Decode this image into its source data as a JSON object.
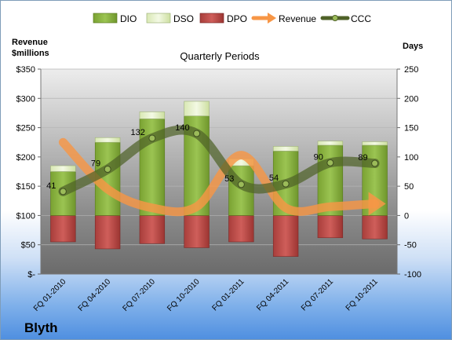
{
  "chart_data": {
    "type": "bar",
    "title": "Quarterly Periods",
    "company": "Blyth",
    "y_left_label_lines": [
      "Revenue",
      "$millions"
    ],
    "y_right_label": "Days",
    "categories": [
      "FQ 01-2010",
      "FQ 04-2010",
      "FQ 07-2010",
      "FQ 10-2010",
      "FQ 01-2011",
      "FQ 04-2011",
      "FQ 07-2011",
      "FQ 10-2011"
    ],
    "y_left": {
      "min": 0,
      "max": 350,
      "ticks": [
        "$-",
        "$50",
        "$100",
        "$150",
        "$200",
        "$250",
        "$300",
        "$350"
      ],
      "tick_values": [
        0,
        50,
        100,
        150,
        200,
        250,
        300,
        350
      ]
    },
    "y_right": {
      "min": -100,
      "max": 250,
      "ticks": [
        "-100",
        "-50",
        "0",
        "50",
        "100",
        "150",
        "200",
        "250"
      ],
      "tick_values": [
        -100,
        -50,
        0,
        50,
        100,
        150,
        200,
        250
      ]
    },
    "series": [
      {
        "name": "DIO",
        "kind": "bar",
        "axis": "right",
        "values": [
          75,
          125,
          165,
          170,
          85,
          110,
          120,
          120
        ],
        "color": "#8db540"
      },
      {
        "name": "DSO",
        "kind": "bar-stack",
        "axis": "right",
        "values": [
          10,
          8,
          12,
          25,
          12,
          8,
          7,
          6
        ],
        "color": "#e6f0c8"
      },
      {
        "name": "DPO",
        "kind": "bar",
        "axis": "right",
        "values": [
          -45,
          -57,
          -48,
          -55,
          -45,
          -70,
          -38,
          -40
        ],
        "color": "#c0504d"
      },
      {
        "name": "Revenue",
        "kind": "line",
        "axis": "left",
        "values": [
          225,
          145,
          113,
          115,
          203,
          113,
          115,
          120
        ],
        "color": "#f79646"
      },
      {
        "name": "CCC",
        "kind": "line",
        "axis": "right",
        "values": [
          41,
          79,
          132,
          140,
          53,
          54,
          90,
          89
        ],
        "labels": [
          "41",
          "79",
          "132",
          "140",
          "53",
          "54",
          "90",
          "89"
        ],
        "color": "#4f6228"
      }
    ],
    "legend_position": "top",
    "grid": true
  }
}
